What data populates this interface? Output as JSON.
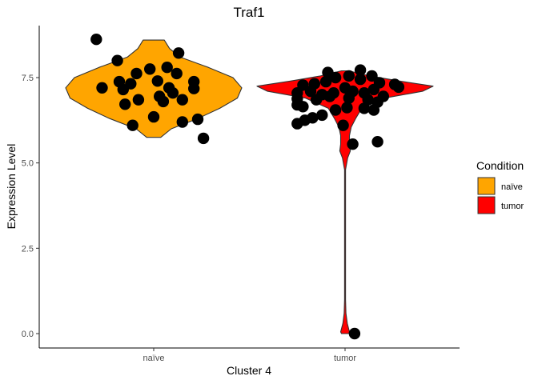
{
  "chart_data": {
    "type": "violin",
    "title": "Traf1",
    "xlabel": "Cluster 4",
    "ylabel": "Expression Level",
    "categories": [
      "naïve",
      "tumor"
    ],
    "yticks": [
      "0.0",
      "2.5",
      "5.0",
      "7.5"
    ],
    "ytick_values": [
      0,
      2.5,
      5,
      7.5
    ],
    "ylim": [
      -0.45,
      9.0
    ],
    "grid": false,
    "legend": {
      "title": "Condition",
      "position": "right",
      "entries": [
        {
          "label": "naïve",
          "color": "#FFA500"
        },
        {
          "label": "tumor",
          "color": "#FF0000"
        }
      ]
    },
    "series": [
      {
        "category": "naïve",
        "color": "#FFA500",
        "density_y": [
          5.75,
          6.0,
          6.3,
          6.6,
          6.9,
          7.2,
          7.5,
          7.8,
          8.1,
          8.35,
          8.6
        ],
        "density_w": [
          0.08,
          0.2,
          0.5,
          0.75,
          0.95,
          1.0,
          0.9,
          0.62,
          0.3,
          0.18,
          0.12
        ],
        "points": [
          {
            "x": -0.3,
            "y": 8.62
          },
          {
            "x": -0.19,
            "y": 8.0
          },
          {
            "x": 0.13,
            "y": 8.22
          },
          {
            "x": 0.07,
            "y": 7.8
          },
          {
            "x": -0.09,
            "y": 7.62
          },
          {
            "x": -0.02,
            "y": 7.75
          },
          {
            "x": 0.12,
            "y": 7.62
          },
          {
            "x": -0.18,
            "y": 7.38
          },
          {
            "x": 0.21,
            "y": 7.38
          },
          {
            "x": -0.12,
            "y": 7.32
          },
          {
            "x": 0.02,
            "y": 7.4
          },
          {
            "x": -0.27,
            "y": 7.2
          },
          {
            "x": -0.16,
            "y": 7.15
          },
          {
            "x": 0.08,
            "y": 7.2
          },
          {
            "x": 0.21,
            "y": 7.18
          },
          {
            "x": 0.1,
            "y": 7.05
          },
          {
            "x": 0.03,
            "y": 6.95
          },
          {
            "x": -0.08,
            "y": 6.85
          },
          {
            "x": 0.15,
            "y": 6.85
          },
          {
            "x": -0.15,
            "y": 6.72
          },
          {
            "x": 0.05,
            "y": 6.8
          },
          {
            "x": 0.0,
            "y": 6.35
          },
          {
            "x": 0.15,
            "y": 6.2
          },
          {
            "x": 0.23,
            "y": 6.28
          },
          {
            "x": -0.11,
            "y": 6.1
          },
          {
            "x": 0.26,
            "y": 5.72
          }
        ]
      },
      {
        "category": "tumor",
        "color": "#FF0000",
        "density_y": [
          0.0,
          0.05,
          0.3,
          0.6,
          1.0,
          2.0,
          3.0,
          4.0,
          4.8,
          5.15,
          5.35,
          5.55,
          5.8,
          6.05,
          6.3,
          6.6,
          6.9,
          7.1,
          7.25,
          7.4,
          7.55,
          7.7
        ],
        "density_w": [
          0.04,
          0.05,
          0.025,
          0.01,
          0.005,
          0.005,
          0.005,
          0.005,
          0.005,
          0.03,
          0.06,
          0.05,
          0.05,
          0.07,
          0.12,
          0.19,
          0.45,
          0.88,
          1.0,
          0.62,
          0.28,
          0.04
        ],
        "points": [
          {
            "x": -0.22,
            "y": 7.28
          },
          {
            "x": -0.16,
            "y": 7.32
          },
          {
            "x": -0.1,
            "y": 7.38
          },
          {
            "x": -0.05,
            "y": 7.5
          },
          {
            "x": -0.09,
            "y": 7.65
          },
          {
            "x": 0.02,
            "y": 7.55
          },
          {
            "x": 0.08,
            "y": 7.45
          },
          {
            "x": 0.08,
            "y": 7.72
          },
          {
            "x": 0.14,
            "y": 7.55
          },
          {
            "x": 0.18,
            "y": 7.35
          },
          {
            "x": 0.26,
            "y": 7.3
          },
          {
            "x": 0.28,
            "y": 7.22
          },
          {
            "x": -0.25,
            "y": 7.05
          },
          {
            "x": -0.18,
            "y": 7.1
          },
          {
            "x": -0.12,
            "y": 7.0
          },
          {
            "x": -0.06,
            "y": 7.05
          },
          {
            "x": 0.0,
            "y": 7.2
          },
          {
            "x": 0.04,
            "y": 7.1
          },
          {
            "x": 0.1,
            "y": 7.05
          },
          {
            "x": 0.15,
            "y": 7.15
          },
          {
            "x": 0.2,
            "y": 6.95
          },
          {
            "x": -0.25,
            "y": 6.88
          },
          {
            "x": -0.15,
            "y": 6.85
          },
          {
            "x": -0.08,
            "y": 6.95
          },
          {
            "x": 0.02,
            "y": 6.9
          },
          {
            "x": 0.12,
            "y": 6.85
          },
          {
            "x": 0.17,
            "y": 6.78
          },
          {
            "x": -0.25,
            "y": 6.7
          },
          {
            "x": -0.22,
            "y": 6.65
          },
          {
            "x": -0.05,
            "y": 6.55
          },
          {
            "x": 0.01,
            "y": 6.62
          },
          {
            "x": 0.1,
            "y": 6.6
          },
          {
            "x": 0.15,
            "y": 6.55
          },
          {
            "x": -0.12,
            "y": 6.4
          },
          {
            "x": -0.17,
            "y": 6.32
          },
          {
            "x": -0.21,
            "y": 6.25
          },
          {
            "x": -0.25,
            "y": 6.15
          },
          {
            "x": -0.01,
            "y": 6.1
          },
          {
            "x": 0.04,
            "y": 5.55
          },
          {
            "x": 0.17,
            "y": 5.62
          },
          {
            "x": 0.05,
            "y": 0.0
          }
        ]
      }
    ]
  }
}
